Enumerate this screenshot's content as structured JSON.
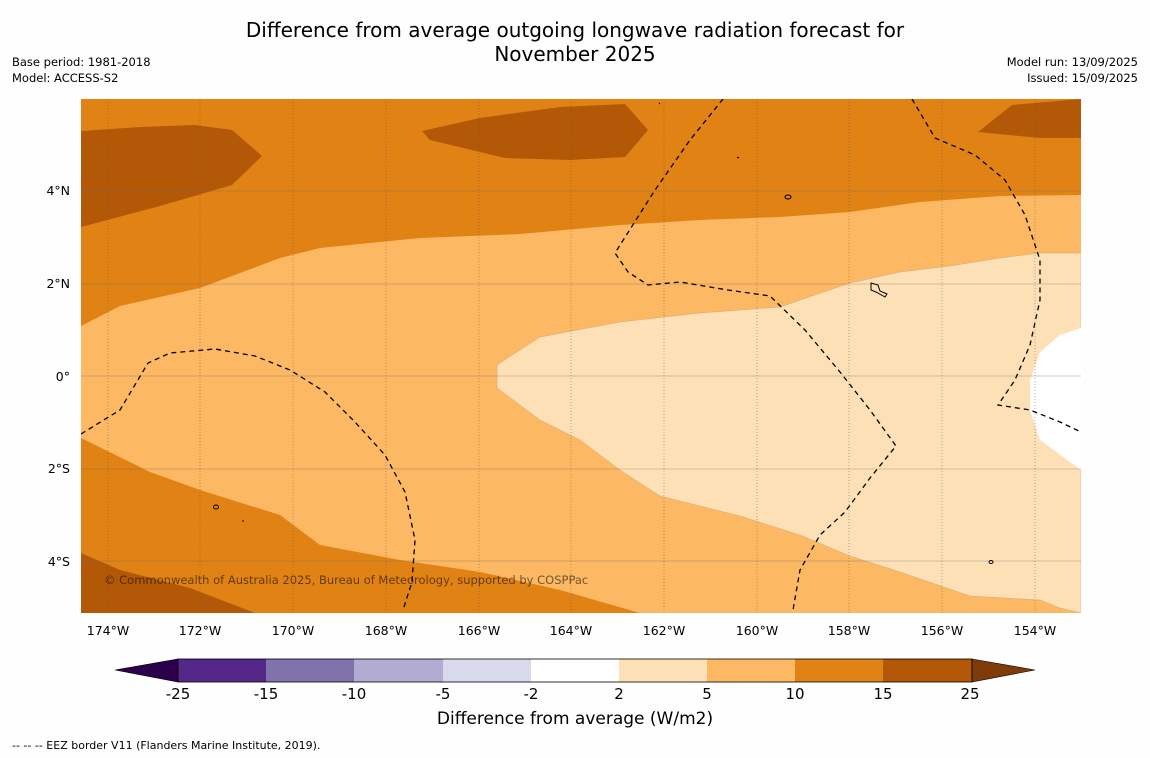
{
  "title_line1": "Difference from average outgoing longwave radiation forecast for",
  "title_line2": "November 2025",
  "base_period": "Base period: 1981-2018",
  "model": "Model: ACCESS-S2",
  "model_run": "Model run: 13/09/2025",
  "issued": "Issued: 15/09/2025",
  "copyright": "© Commonwealth of Australia 2025, Bureau of Meteorology, supported by COSPPac",
  "lon_labels": [
    "174°W",
    "172°W",
    "170°W",
    "168°W",
    "166°W",
    "164°W",
    "162°W",
    "160°W",
    "158°W",
    "156°W",
    "154°W"
  ],
  "lat_labels": [
    "4°N",
    "2°N",
    "0°",
    "2°S",
    "4°S"
  ],
  "colorbar": {
    "title": "Difference from average (W/m2)",
    "ticks": [
      "-25",
      "-15",
      "-10",
      "-5",
      "-2",
      "2",
      "5",
      "10",
      "15",
      "25"
    ],
    "colors": [
      "#542788",
      "#8073ac",
      "#b2abd2",
      "#d8daeb",
      "#ffffff",
      "#fee0b6",
      "#fdb863",
      "#e08214",
      "#b35806"
    ],
    "extend_low": "#2d004b",
    "extend_high": "#7f3b08"
  },
  "footnote": "--  --  -- EEZ border V11 (Flanders Marine Institute, 2019)."
}
